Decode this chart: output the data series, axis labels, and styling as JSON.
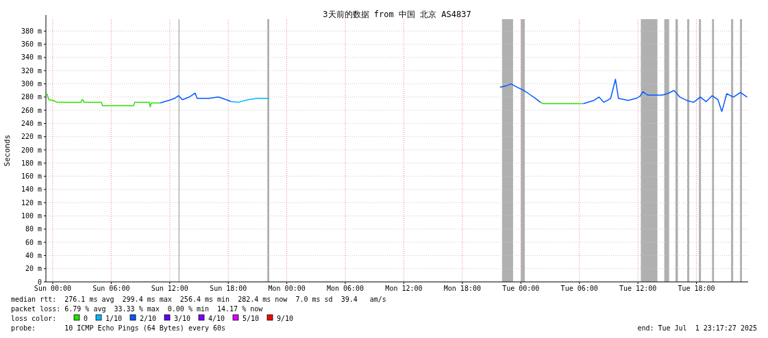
{
  "chart_data": {
    "type": "line",
    "title": "3天前的数据 from 中国 北京 AS4837",
    "ylabel": "Seconds",
    "legend_title": "loss color:",
    "legend": "bottom",
    "grid": true,
    "xlim": [
      "2025-06-28T23:18",
      "2025-07-01T23:18"
    ],
    "ylim": [
      0,
      398
    ],
    "xticks": [
      {
        "value": "2025-06-29T00:00",
        "label": "Sun 00:00"
      },
      {
        "value": "2025-06-29T06:00",
        "label": "Sun 06:00"
      },
      {
        "value": "2025-06-29T12:00",
        "label": "Sun 12:00"
      },
      {
        "value": "2025-06-29T18:00",
        "label": "Sun 18:00"
      },
      {
        "value": "2025-06-30T00:00",
        "label": "Mon 00:00"
      },
      {
        "value": "2025-06-30T06:00",
        "label": "Mon 06:00"
      },
      {
        "value": "2025-06-30T12:00",
        "label": "Mon 12:00"
      },
      {
        "value": "2025-06-30T18:00",
        "label": "Mon 18:00"
      },
      {
        "value": "2025-07-01T00:00",
        "label": "Tue 00:00"
      },
      {
        "value": "2025-07-01T06:00",
        "label": "Tue 06:00"
      },
      {
        "value": "2025-07-01T12:00",
        "label": "Tue 12:00"
      },
      {
        "value": "2025-07-01T18:00",
        "label": "Tue 18:00"
      }
    ],
    "yticks": [
      0,
      {
        "value": 20,
        "label": "20 m"
      },
      {
        "value": 40,
        "label": "40 m"
      },
      {
        "value": 60,
        "label": "60 m"
      },
      {
        "value": 80,
        "label": "80 m"
      },
      {
        "value": 100,
        "label": "100 m"
      },
      {
        "value": 120,
        "label": "120 m"
      },
      {
        "value": 140,
        "label": "140 m"
      },
      {
        "value": 160,
        "label": "160 m"
      },
      {
        "value": 180,
        "label": "180 m"
      },
      {
        "value": 200,
        "label": "200 m"
      },
      {
        "value": 220,
        "label": "220 m"
      },
      {
        "value": 240,
        "label": "240 m"
      },
      {
        "value": 260,
        "label": "260 m"
      },
      {
        "value": 280,
        "label": "280 m"
      },
      {
        "value": 300,
        "label": "300 m"
      },
      {
        "value": 320,
        "label": "320 m"
      },
      {
        "value": 340,
        "label": "340 m"
      },
      {
        "value": 360,
        "label": "360 m"
      },
      {
        "value": 380,
        "label": "380 m"
      }
    ],
    "series": [
      {
        "name": "0",
        "color": "#26e000",
        "x": [
          "2025-06-28T23:24",
          "2025-06-28T23:36",
          "2025-06-29T00:00",
          "2025-06-29T00:30",
          "2025-06-29T02:54",
          "2025-06-29T03:00",
          "2025-06-29T03:06",
          "2025-06-29T03:12",
          "2025-06-29T05:00",
          "2025-06-29T05:06",
          "2025-06-29T08:18",
          "2025-06-29T08:24",
          "2025-06-29T09:54",
          "2025-06-29T10:00",
          "2025-06-29T10:06",
          "2025-06-29T11:00",
          null,
          "2025-07-01T02:00",
          "2025-07-01T02:18",
          "2025-07-01T04:12",
          "2025-07-01T04:30",
          "2025-07-01T06:24"
        ],
        "values": [
          285,
          276,
          275,
          272,
          272,
          276,
          276,
          272,
          272,
          267,
          267,
          272,
          272,
          265,
          271,
          271,
          null,
          272,
          270,
          270,
          270,
          270
        ]
      },
      {
        "name": "1/10",
        "color": "#00b8ff",
        "x": [
          "2025-06-29T18:18",
          "2025-06-29T19:00",
          "2025-06-29T20:00",
          "2025-06-29T21:00",
          "2025-06-29T22:12"
        ],
        "values": [
          273,
          272,
          276,
          278,
          278
        ]
      },
      {
        "name": "2/10",
        "color": "#0059ff",
        "x": [
          "2025-06-29T11:00",
          "2025-06-29T11:54",
          "2025-06-29T12:30",
          "2025-06-29T12:54",
          "2025-06-29T13:18",
          "2025-06-29T14:00",
          "2025-06-29T14:36",
          "2025-06-29T14:48",
          "2025-06-29T16:00",
          "2025-06-29T17:00",
          "2025-06-29T18:00",
          "2025-06-29T18:18",
          null,
          "2025-06-30T21:51",
          "2025-06-30T22:30",
          "2025-06-30T23:00",
          "2025-06-30T23:36",
          "2025-07-01T00:18",
          "2025-07-01T00:48",
          "2025-07-01T01:30",
          "2025-07-01T02:00",
          null,
          "2025-07-01T06:24",
          "2025-07-01T07:30",
          "2025-07-01T08:00",
          "2025-07-01T08:30",
          "2025-07-01T09:12",
          "2025-07-01T09:42",
          "2025-07-01T10:00",
          "2025-07-01T11:00",
          "2025-07-01T11:48",
          "2025-07-01T12:12",
          "2025-07-01T12:30",
          "2025-07-01T13:00",
          "2025-07-01T14:30",
          "2025-07-01T15:00",
          "2025-07-01T15:42",
          "2025-07-01T16:18",
          "2025-07-01T17:00",
          "2025-07-01T17:42",
          "2025-07-01T18:24",
          "2025-07-01T19:00",
          "2025-07-01T19:36",
          "2025-07-01T20:12",
          "2025-07-01T20:36",
          "2025-07-01T21:06",
          "2025-07-01T21:48",
          "2025-07-01T22:30",
          "2025-07-01T23:12"
        ],
        "values": [
          271,
          275,
          278,
          282,
          276,
          280,
          286,
          278,
          278,
          280,
          275,
          273,
          null,
          295,
          297,
          300,
          295,
          290,
          285,
          278,
          272,
          null,
          270,
          275,
          280,
          272,
          278,
          307,
          278,
          275,
          278,
          281,
          288,
          283,
          283,
          285,
          290,
          280,
          275,
          272,
          280,
          273,
          282,
          276,
          258,
          285,
          280,
          287,
          280
        ]
      },
      {
        "name": "3/10",
        "color": "#5e00ff"
      },
      {
        "name": "4/10",
        "color": "#7e00ff"
      },
      {
        "name": "5/10",
        "color": "#dd00ff"
      },
      {
        "name": "9/10",
        "color": "#ff0000"
      }
    ],
    "bands": [
      {
        "axis": "x",
        "from": "2025-06-29T12:54",
        "to": "2025-06-29T13:00",
        "color": "#b0b0b0"
      },
      {
        "axis": "x",
        "from": "2025-06-29T22:00",
        "to": "2025-06-29T22:12",
        "color": "#b0b0b0"
      },
      {
        "axis": "x",
        "from": "2025-06-30T22:04",
        "to": "2025-06-30T23:12",
        "color": "#b0b0b0"
      },
      {
        "axis": "x",
        "from": "2025-07-01T00:00",
        "to": "2025-07-01T00:24",
        "color": "#b0b0b0"
      },
      {
        "axis": "x",
        "from": "2025-07-01T12:18",
        "to": "2025-07-01T14:00",
        "color": "#b0b0b0"
      },
      {
        "axis": "x",
        "from": "2025-07-01T14:42",
        "to": "2025-07-01T15:12",
        "color": "#b0b0b0"
      },
      {
        "axis": "x",
        "from": "2025-07-01T15:51",
        "to": "2025-07-01T16:06",
        "color": "#b0b0b0"
      },
      {
        "axis": "x",
        "from": "2025-07-01T17:03",
        "to": "2025-07-01T17:16",
        "color": "#b0b0b0"
      },
      {
        "axis": "x",
        "from": "2025-07-01T18:15",
        "to": "2025-07-01T18:28",
        "color": "#b0b0b0"
      },
      {
        "axis": "x",
        "from": "2025-07-01T19:36",
        "to": "2025-07-01T19:48",
        "color": "#b0b0b0"
      },
      {
        "axis": "x",
        "from": "2025-07-01T21:33",
        "to": "2025-07-01T21:46",
        "color": "#b0b0b0"
      },
      {
        "axis": "x",
        "from": "2025-07-01T22:28",
        "to": "2025-07-01T22:40",
        "color": "#b0b0b0"
      }
    ],
    "annotations": [
      "median rtt:  276.1 ms avg  299.4 ms max  256.4 ms min  282.4 ms now  7.0 ms sd  39.4   am/s",
      "packet loss: 6.79 % avg  33.33 % max  0.00 % min  14.17 % now",
      "probe:       10 ICMP Echo Pings (64 Bytes) every 60s",
      "end: Tue Jul  1 23:17:27 2025"
    ]
  }
}
